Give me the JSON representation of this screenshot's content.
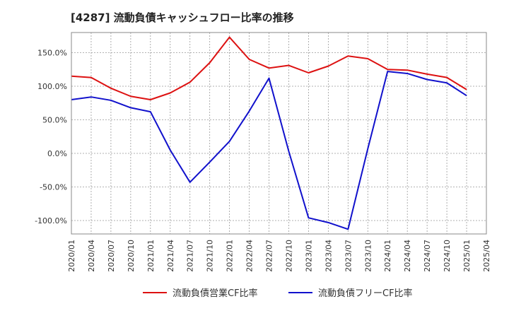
{
  "chart_data": {
    "type": "line",
    "title": "[4287]  流動負債キャッシュフロー比率の推移",
    "xlabel": "",
    "ylabel": "",
    "ylim": [
      -120,
      180
    ],
    "ytick_values": [
      -100,
      -50,
      0,
      50,
      100,
      150
    ],
    "ytick_labels": [
      "-100.0%",
      "-50.0%",
      "0.0%",
      "50.0%",
      "100.0%",
      "150.0%"
    ],
    "x_labels": [
      "2020/01",
      "2020/04",
      "2020/07",
      "2020/10",
      "2021/01",
      "2021/04",
      "2021/07",
      "2021/10",
      "2022/01",
      "2022/04",
      "2022/07",
      "2022/10",
      "2023/01",
      "2023/04",
      "2023/07",
      "2023/10",
      "2024/01",
      "2024/04",
      "2024/07",
      "2024/10",
      "2025/01",
      "2025/04"
    ],
    "grid": true,
    "legend_position": "bottom",
    "series": [
      {
        "name": "流動負債営業CF比率",
        "color": "#dd1111",
        "x": [
          "2020/01",
          "2020/04",
          "2020/07",
          "2020/10",
          "2021/01",
          "2021/04",
          "2021/07",
          "2021/10",
          "2022/01",
          "2022/04",
          "2022/07",
          "2022/10",
          "2023/01",
          "2023/04",
          "2023/07",
          "2023/10",
          "2024/01",
          "2024/04",
          "2024/07",
          "2024/10",
          "2025/01"
        ],
        "values": [
          115,
          113,
          97,
          85,
          80,
          90,
          106,
          135,
          173,
          140,
          127,
          131,
          120,
          130,
          145,
          141,
          125,
          124,
          118,
          113,
          95
        ]
      },
      {
        "name": "流動負債フリーCF比率",
        "color": "#1111cc",
        "x": [
          "2020/01",
          "2020/04",
          "2020/07",
          "2020/10",
          "2021/01",
          "2021/04",
          "2021/07",
          "2021/10",
          "2022/01",
          "2022/04",
          "2022/07",
          "2022/10",
          "2023/01",
          "2023/04",
          "2023/07",
          "2023/10",
          "2024/01",
          "2024/04",
          "2024/07",
          "2024/10",
          "2025/01"
        ],
        "values": [
          80,
          84,
          79,
          68,
          62,
          5,
          -43,
          -13,
          18,
          63,
          112,
          3,
          -96,
          -103,
          -113,
          7,
          122,
          119,
          110,
          105,
          86
        ]
      }
    ]
  }
}
